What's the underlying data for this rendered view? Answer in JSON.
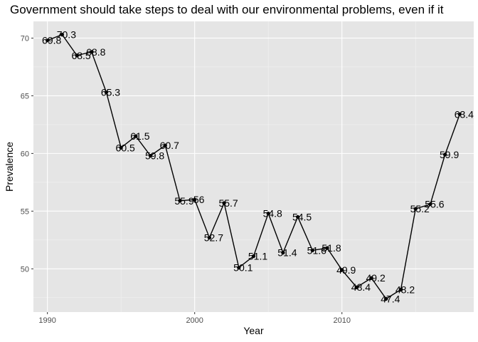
{
  "chart_data": {
    "type": "line",
    "title": "Government should take steps to deal with our environmental problems, even if it",
    "xlabel": "Year",
    "ylabel": "Prevalence",
    "x": [
      1990,
      1991,
      1992,
      1993,
      1994,
      1995,
      1996,
      1997,
      1998,
      1999,
      2000,
      2001,
      2002,
      2003,
      2004,
      2005,
      2006,
      2007,
      2008,
      2009,
      2010,
      2011,
      2012,
      2013,
      2014,
      2015,
      2016,
      2017,
      2018
    ],
    "series": [
      {
        "values": [
          69.8,
          70.3,
          68.5,
          68.8,
          65.3,
          60.5,
          61.5,
          59.8,
          60.7,
          55.9,
          56.0,
          52.7,
          55.7,
          50.1,
          51.1,
          54.8,
          51.4,
          54.5,
          51.6,
          51.8,
          49.9,
          48.4,
          49.2,
          47.4,
          48.2,
          55.2,
          55.6,
          59.9,
          63.4
        ],
        "labels": [
          "69.8",
          "70.3",
          "68.5",
          "68.8",
          "65.3",
          "60.5",
          "61.5",
          "59.8",
          "60.7",
          "55.9",
          "56",
          "52.7",
          "55.7",
          "50.1",
          "51.1",
          "54.8",
          "51.4",
          "54.5",
          "51.6",
          "51.8",
          "49.9",
          "48.4",
          "49.2",
          "47.4",
          "48.2",
          "55.2",
          "55.6",
          "59.9",
          "63.4"
        ]
      }
    ],
    "xticks": [
      "1990",
      "2000",
      "2010"
    ],
    "xtick_values": [
      1990,
      2000,
      2010
    ],
    "yticks": [
      "50",
      "55",
      "60",
      "65",
      "70"
    ],
    "ytick_values": [
      50,
      55,
      60,
      65,
      70
    ],
    "xlim": [
      1989.05,
      2018.95
    ],
    "ylim": [
      46.25,
      71.45
    ],
    "grid": true,
    "colors": {
      "panel": "#e5e5e5",
      "grid_major": "#ffffff",
      "grid_minor": "#f2f2f2",
      "line": "#000000",
      "point": "#000000"
    }
  }
}
